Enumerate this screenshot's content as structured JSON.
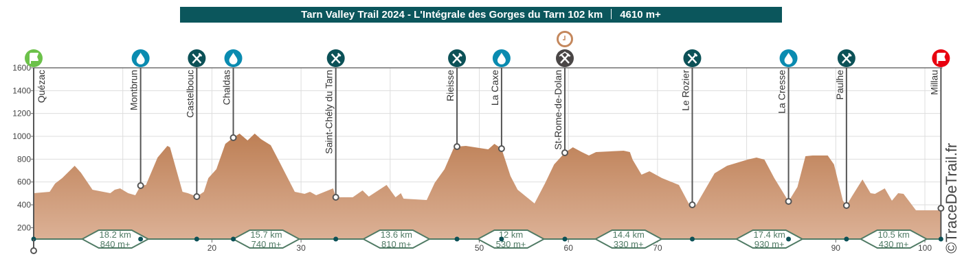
{
  "title": {
    "race": "Tarn Valley Trail 2024 - L'Intégrale des Gorges du Tarn 102 km",
    "elevation_gain": "4610 m+"
  },
  "watermark": "©TraceDeTrail.fr",
  "colors": {
    "title_bg": "#0b565c",
    "profile_top": "#bd7f55",
    "profile_bottom": "#dcb196",
    "food": "#0c5157",
    "water": "#0a8bb0",
    "start": "#6cc14a",
    "finish": "#e8000f",
    "checkpoint_gray": "#4a4646",
    "time_barrier": "#c4875c",
    "section": "#4f7a64"
  },
  "chart_data": {
    "type": "area",
    "xlabel": "",
    "ylabel": "",
    "xlim": [
      0,
      102
    ],
    "ylim": [
      100,
      1600
    ],
    "grid": true,
    "yticks": [
      200,
      400,
      600,
      800,
      1000,
      1200,
      1400,
      1600
    ],
    "xticks": [
      20,
      30,
      50,
      60,
      70,
      90,
      100
    ],
    "profile": {
      "km": [
        0,
        1.8,
        2.4,
        3.2,
        4.6,
        5.3,
        6.6,
        8.6,
        9.1,
        9.7,
        10.6,
        11.4,
        12.0,
        12.6,
        13.9,
        15.0,
        15.3,
        16.7,
        17.3,
        18.3,
        19.1,
        19.6,
        20.5,
        21.5,
        22.4,
        23.1,
        24.0,
        24.8,
        25.5,
        26.6,
        27.6,
        29.3,
        30.4,
        31.0,
        31.7,
        33.6,
        33.9,
        35.8,
        36.9,
        37.6,
        39.6,
        40.6,
        41.2,
        41.5,
        44.1,
        45.0,
        46.1,
        47.1,
        47.5,
        48.5,
        51.0,
        51.7,
        52.5,
        53.5,
        54.3,
        56.2,
        57.4,
        58.4,
        59.6,
        60.5,
        61.5,
        62.3,
        63.1,
        66.2,
        66.9,
        67.2,
        68.2,
        69.1,
        70.5,
        72.4,
        73.5,
        73.9,
        74.3,
        76.4,
        77.8,
        80.1,
        81.1,
        82.0,
        83.1,
        84.7,
        85.7,
        86.6,
        87.4,
        89.1,
        89.8,
        90.8,
        91.2,
        91.8,
        93.0,
        93.9,
        94.4,
        95.5,
        96.3,
        97.0,
        97.6,
        99.0,
        101.6,
        101.8
      ],
      "elevation": [
        502,
        514,
        586,
        634,
        742,
        682,
        532,
        502,
        532,
        544,
        502,
        484,
        568,
        574,
        814,
        916,
        904,
        514,
        502,
        472,
        514,
        634,
        712,
        934,
        988,
        1024,
        964,
        1024,
        976,
        922,
        772,
        514,
        496,
        514,
        484,
        544,
        466,
        466,
        526,
        472,
        574,
        466,
        502,
        454,
        442,
        592,
        712,
        892,
        910,
        916,
        886,
        934,
        892,
        652,
        532,
        412,
        592,
        754,
        856,
        904,
        862,
        832,
        862,
        874,
        862,
        796,
        664,
        694,
        634,
        574,
        412,
        400,
        394,
        676,
        742,
        796,
        814,
        796,
        634,
        430,
        556,
        826,
        832,
        832,
        754,
        436,
        394,
        472,
        622,
        502,
        496,
        544,
        436,
        502,
        496,
        352,
        352,
        370
      ]
    },
    "waypoints": [
      {
        "name": "Quézac",
        "km": 0,
        "elevation": 502,
        "icon": "start-flag"
      },
      {
        "name": "Montbrun",
        "km": 12.0,
        "elevation": 568,
        "icon": "water"
      },
      {
        "name": "Castelbouc",
        "km": 18.3,
        "elevation": 472,
        "icon": "food"
      },
      {
        "name": "Chaldas",
        "km": 22.4,
        "elevation": 988,
        "icon": "water"
      },
      {
        "name": "Saint-Chély du Tarn",
        "km": 33.9,
        "elevation": 466,
        "icon": "food"
      },
      {
        "name": "Rieisse",
        "km": 47.5,
        "elevation": 910,
        "icon": "food"
      },
      {
        "name": "La Caxe",
        "km": 52.5,
        "elevation": 892,
        "icon": "water"
      },
      {
        "name": "St-Rome-de-Dolan",
        "km": 59.6,
        "elevation": 856,
        "icon": "food-shelter",
        "time_barrier": true
      },
      {
        "name": "Le Rozier",
        "km": 73.9,
        "elevation": 400,
        "icon": "food"
      },
      {
        "name": "La Cresse",
        "km": 84.7,
        "elevation": 430,
        "icon": "water"
      },
      {
        "name": "Paulhe",
        "km": 91.2,
        "elevation": 394,
        "icon": "food"
      },
      {
        "name": "Millau",
        "km": 101.8,
        "elevation": 370,
        "icon": "finish-flag"
      }
    ],
    "sections": [
      {
        "from_km": 0,
        "to_km": 18.3,
        "distance": "18.2 km",
        "gain": "840 m+"
      },
      {
        "from_km": 18.3,
        "to_km": 33.9,
        "distance": "15.7 km",
        "gain": "740 m+"
      },
      {
        "from_km": 33.9,
        "to_km": 47.5,
        "distance": "13.6 km",
        "gain": "810 m+"
      },
      {
        "from_km": 47.5,
        "to_km": 59.6,
        "distance": "12 km",
        "gain": "530 m+"
      },
      {
        "from_km": 59.6,
        "to_km": 73.9,
        "distance": "14.4 km",
        "gain": "330 m+"
      },
      {
        "from_km": 73.9,
        "to_km": 91.2,
        "distance": "17.4 km",
        "gain": "930 m+"
      },
      {
        "from_km": 91.2,
        "to_km": 101.8,
        "distance": "10.5 km",
        "gain": "430 m+"
      }
    ]
  }
}
